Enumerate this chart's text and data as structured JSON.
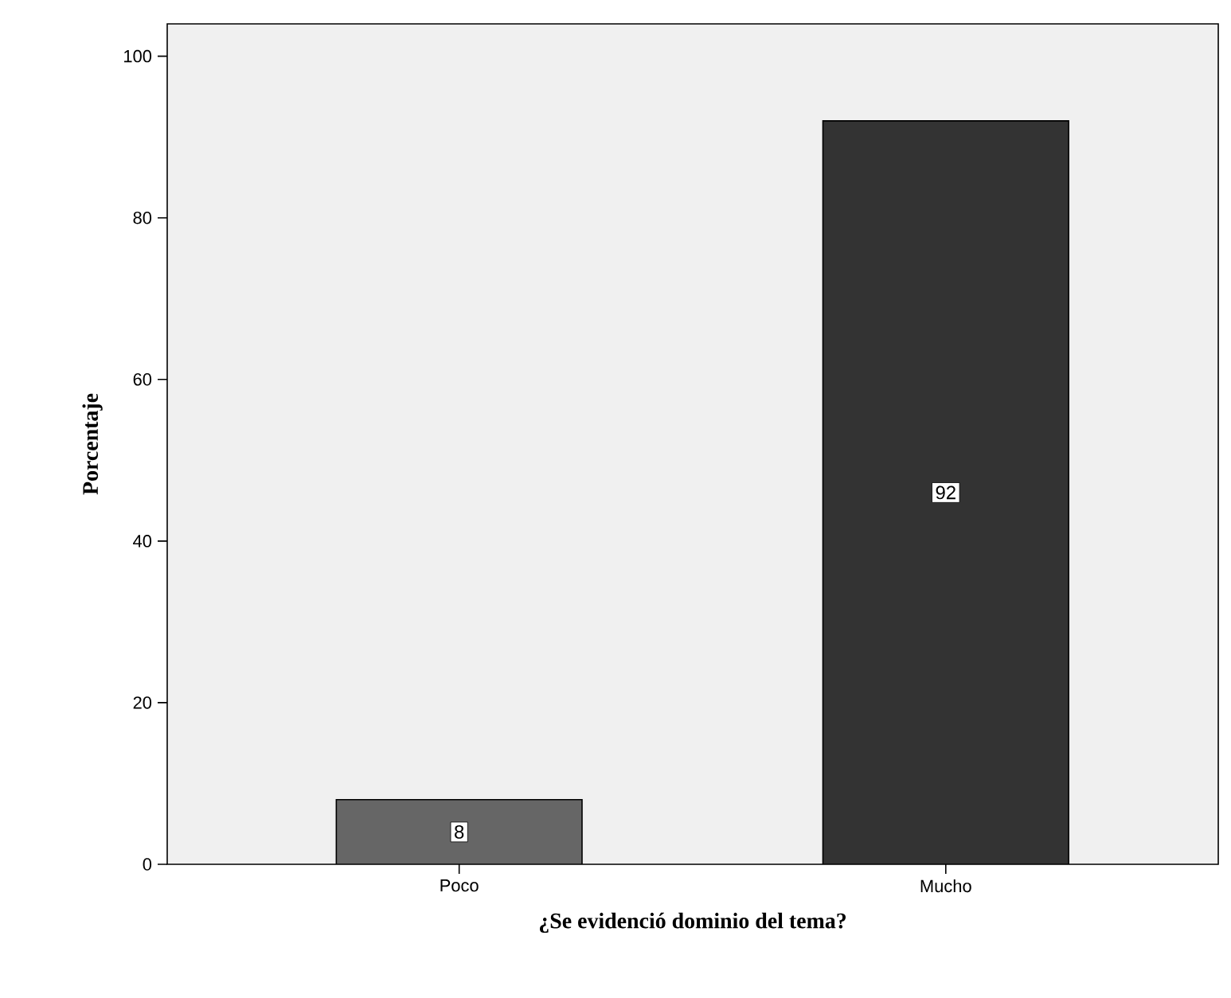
{
  "chart_data": {
    "type": "bar",
    "xlabel": "¿Se evidenció dominio del tema?",
    "ylabel": "Porcentaje",
    "categories": [
      "Poco",
      "Mucho"
    ],
    "values": [
      8,
      92
    ],
    "colors": [
      "#666666",
      "#333333"
    ],
    "ylim": [
      0,
      104
    ],
    "yticks": [
      0,
      20,
      40,
      60,
      80,
      100
    ],
    "data_labels": true,
    "grid": false
  }
}
